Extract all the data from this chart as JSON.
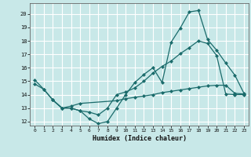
{
  "xlabel": "Humidex (Indice chaleur)",
  "background_color": "#c8e8e8",
  "grid_color": "#ffffff",
  "line_color": "#1a6b6b",
  "xlim": [
    -0.5,
    23.5
  ],
  "ylim": [
    11.7,
    20.8
  ],
  "xticks": [
    0,
    1,
    2,
    3,
    4,
    5,
    6,
    7,
    8,
    9,
    10,
    11,
    12,
    13,
    14,
    15,
    16,
    17,
    18,
    19,
    20,
    21,
    22,
    23
  ],
  "yticks": [
    12,
    13,
    14,
    15,
    16,
    17,
    18,
    19,
    20
  ],
  "curve1_x": [
    0,
    1,
    2,
    3,
    4,
    5,
    6,
    7,
    8,
    9,
    10,
    11,
    12,
    13,
    14,
    15,
    16,
    17,
    18,
    19,
    20,
    21,
    22,
    23
  ],
  "curve1_y": [
    15.1,
    14.4,
    13.6,
    13.0,
    13.0,
    12.8,
    12.2,
    11.85,
    12.0,
    13.0,
    14.0,
    14.9,
    15.5,
    16.0,
    14.9,
    17.9,
    18.95,
    20.15,
    20.25,
    18.1,
    17.3,
    16.35,
    15.45,
    14.1
  ],
  "curve2_x": [
    0,
    1,
    2,
    3,
    4,
    5,
    6,
    7,
    8,
    9,
    10,
    11,
    12,
    13,
    14,
    15,
    16,
    17,
    18,
    19,
    20,
    21,
    22,
    23
  ],
  "curve2_y": [
    14.8,
    14.4,
    13.6,
    13.0,
    13.0,
    12.8,
    12.7,
    12.5,
    13.0,
    14.0,
    14.2,
    14.5,
    15.0,
    15.6,
    16.1,
    16.5,
    17.05,
    17.5,
    18.0,
    17.8,
    16.9,
    14.05,
    14.0,
    14.0
  ],
  "curve3_x": [
    2,
    3,
    4,
    5,
    9,
    10,
    11,
    12,
    13,
    14,
    15,
    16,
    17,
    18,
    19,
    20,
    21,
    22,
    23
  ],
  "curve3_y": [
    13.6,
    13.0,
    13.15,
    13.35,
    13.55,
    13.7,
    13.8,
    13.9,
    14.0,
    14.15,
    14.25,
    14.35,
    14.45,
    14.55,
    14.65,
    14.7,
    14.7,
    14.1,
    14.05
  ]
}
